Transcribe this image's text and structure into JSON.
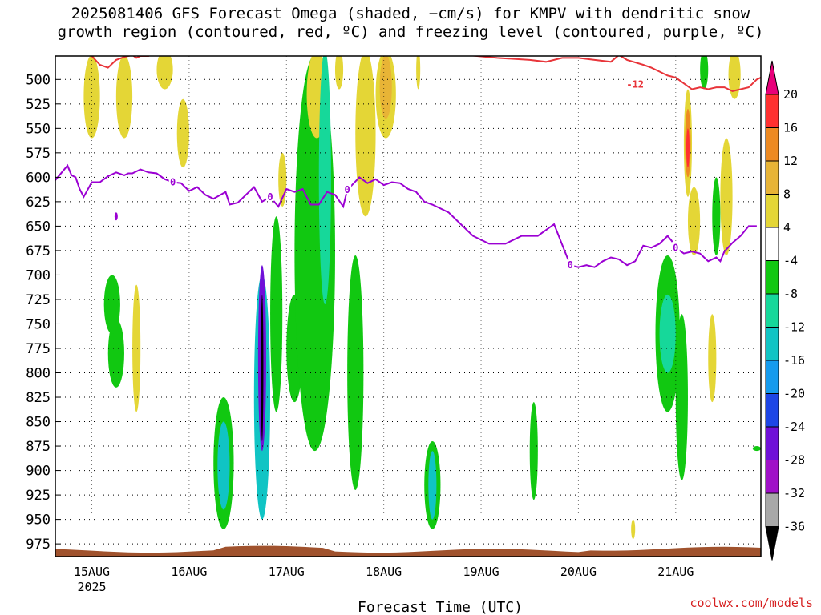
{
  "title": "2025081406 GFS Forecast Omega (shaded, −cm/s) for KMPV with dendritic snow\ngrowth region (contoured, red, ºC) and freezing level (contoured, purple, ºC)",
  "credit": "coolwx.com/models",
  "colors": {
    "frame": "#000000",
    "grid": "#000000",
    "ground": "#a0522d",
    "dgz": "#e8353a",
    "freezing": "#9b00d3",
    "white_band": "#ffffff"
  },
  "chart_data": {
    "type": "heatmap",
    "title": "2025081406 GFS Forecast Omega (shaded, −cm/s) for KMPV with dendritic snow growth region (contoured, red, ºC) and freezing level (contoured, purple, ºC)",
    "xlabel": "Forecast Time (UTC)",
    "ylabel": "",
    "x_tick_labels": [
      "15AUG",
      "16AUG",
      "17AUG",
      "18AUG",
      "19AUG",
      "20AUG",
      "21AUG"
    ],
    "x_year_label": "2025",
    "x_range_hours": [
      -9,
      165
    ],
    "y_tick_labels": [
      "500",
      "525",
      "550",
      "575",
      "600",
      "625",
      "650",
      "675",
      "700",
      "725",
      "750",
      "775",
      "800",
      "825",
      "850",
      "875",
      "900",
      "925",
      "950",
      "975"
    ],
    "y_range_hpa": [
      476,
      988
    ],
    "grid": true,
    "colorbar_labels": [
      "20",
      "16",
      "12",
      "8",
      "4",
      "-4",
      "-8",
      "-12",
      "-16",
      "-20",
      "-24",
      "-28",
      "-32",
      "-36"
    ],
    "colorbar_colors": [
      "#e8007a",
      "#ff3030",
      "#ee8a22",
      "#e8b436",
      "#e4d636",
      "#ffffff",
      "#11c811",
      "#16d89a",
      "#10c4c4",
      "#159bee",
      "#1e46e6",
      "#7010d8",
      "#a010c8",
      "#a8a8a8",
      "#000000"
    ],
    "colorbar_placement": "right",
    "contour_labels": {
      "dgz": "-12",
      "freezing": "0"
    },
    "freezing_level": {
      "hours": [
        -9,
        -6,
        -5,
        -4,
        -3,
        -2,
        0,
        2,
        4,
        6,
        8,
        9,
        10,
        12,
        14,
        16,
        18,
        20,
        22,
        24,
        26,
        28,
        30,
        33,
        34,
        36,
        38,
        40,
        42,
        44,
        46,
        48,
        50,
        52,
        54,
        56,
        58,
        60,
        62,
        63,
        66,
        68,
        70,
        72,
        74,
        76,
        78,
        80,
        82,
        84,
        86,
        88,
        90,
        94,
        98,
        102,
        106,
        110,
        114,
        118,
        120,
        122,
        124,
        126,
        128,
        130,
        132,
        134,
        136,
        138,
        140,
        142,
        143,
        144,
        146,
        148,
        150,
        152,
        154,
        155,
        156,
        158,
        160,
        162,
        164
      ],
      "hpa": [
        603,
        588,
        598,
        600,
        612,
        620,
        605,
        605,
        599,
        595,
        598,
        596,
        596,
        592,
        595,
        596,
        602,
        605,
        606,
        614,
        610,
        618,
        622,
        615,
        628,
        626,
        618,
        610,
        625,
        620,
        630,
        612,
        615,
        612,
        628,
        628,
        615,
        618,
        630,
        613,
        600,
        606,
        602,
        608,
        605,
        606,
        612,
        615,
        625,
        628,
        632,
        636,
        644,
        660,
        668,
        668,
        660,
        660,
        648,
        690,
        692,
        690,
        692,
        686,
        682,
        684,
        690,
        686,
        670,
        672,
        668,
        660,
        665,
        672,
        678,
        676,
        678,
        686,
        682,
        686,
        676,
        667,
        660,
        650,
        650
      ],
      "isolated_point": {
        "hours": 6,
        "hpa": 640
      }
    },
    "dgz_contour": {
      "hours": [
        -1,
        0,
        2,
        4,
        6,
        8,
        10,
        11,
        12,
        14,
        15,
        16,
        17,
        18,
        20,
        24,
        28,
        32,
        36,
        40,
        44,
        48,
        52,
        56,
        60,
        70,
        80,
        90,
        100,
        108,
        112,
        116,
        120,
        124,
        128,
        130,
        132,
        136,
        138,
        140,
        142,
        144,
        146,
        148,
        150,
        152,
        154,
        156,
        158,
        160,
        162,
        164,
        165
      ],
      "hpa": [
        465,
        476,
        485,
        488,
        480,
        477,
        475,
        478,
        476,
        476,
        474,
        470,
        468,
        470,
        472,
        473,
        472,
        470,
        468,
        470,
        471,
        472,
        474,
        470,
        468,
        470,
        470,
        474,
        478,
        480,
        482,
        478,
        478,
        480,
        482,
        475,
        480,
        485,
        488,
        492,
        496,
        498,
        504,
        510,
        508,
        510,
        508,
        508,
        512,
        510,
        508,
        500,
        498
      ]
    },
    "omega_cells": [
      {
        "x": [
          4,
          8
        ],
        "y": [
          745,
          815
        ],
        "color": "#11c811"
      },
      {
        "x": [
          3,
          7
        ],
        "y": [
          700,
          760
        ],
        "color": "#11c811"
      },
      {
        "x": [
          10,
          12
        ],
        "y": [
          710,
          840
        ],
        "color": "#e4d636"
      },
      {
        "x": [
          -2,
          2
        ],
        "y": [
          475,
          560
        ],
        "color": "#e4d636"
      },
      {
        "x": [
          6,
          10
        ],
        "y": [
          475,
          560
        ],
        "color": "#e4d636"
      },
      {
        "x": [
          16,
          20
        ],
        "y": [
          470,
          510
        ],
        "color": "#e4d636"
      },
      {
        "x": [
          21,
          24
        ],
        "y": [
          520,
          590
        ],
        "color": "#e4d636"
      },
      {
        "x": [
          30,
          35
        ],
        "y": [
          825,
          960
        ],
        "color": "#11c811"
      },
      {
        "x": [
          31,
          34
        ],
        "y": [
          850,
          940
        ],
        "color": "#10c4c4"
      },
      {
        "x": [
          40,
          44
        ],
        "y": [
          700,
          950
        ],
        "color": "#10c4c4"
      },
      {
        "x": [
          41,
          43
        ],
        "y": [
          690,
          880
        ],
        "color": "#7010d8"
      },
      {
        "x": [
          41.7,
          42.3
        ],
        "y": [
          720,
          870
        ],
        "color": "#000000"
      },
      {
        "x": [
          44,
          47
        ],
        "y": [
          640,
          840
        ],
        "color": "#11c811"
      },
      {
        "x": [
          46,
          48
        ],
        "y": [
          575,
          630
        ],
        "color": "#e4d636"
      },
      {
        "x": [
          48,
          52
        ],
        "y": [
          720,
          830
        ],
        "color": "#11c811"
      },
      {
        "x": [
          50,
          60
        ],
        "y": [
          475,
          880
        ],
        "color": "#11c811"
      },
      {
        "x": [
          53,
          58
        ],
        "y": [
          470,
          560
        ],
        "color": "#e4d636"
      },
      {
        "x": [
          56,
          59
        ],
        "y": [
          470,
          730
        ],
        "color": "#16d89a"
      },
      {
        "x": [
          60,
          62
        ],
        "y": [
          470,
          510
        ],
        "color": "#e4d636"
      },
      {
        "x": [
          63,
          67
        ],
        "y": [
          680,
          920
        ],
        "color": "#11c811"
      },
      {
        "x": [
          65,
          70
        ],
        "y": [
          470,
          640
        ],
        "color": "#e4d636"
      },
      {
        "x": [
          70,
          75
        ],
        "y": [
          470,
          560
        ],
        "color": "#e4d636"
      },
      {
        "x": [
          71,
          74
        ],
        "y": [
          475,
          540
        ],
        "color": "#e8b436"
      },
      {
        "x": [
          80,
          81
        ],
        "y": [
          470,
          510
        ],
        "color": "#e4d636"
      },
      {
        "x": [
          82,
          86
        ],
        "y": [
          870,
          960
        ],
        "color": "#11c811"
      },
      {
        "x": [
          83,
          85
        ],
        "y": [
          880,
          950
        ],
        "color": "#10c4c4"
      },
      {
        "x": [
          108,
          110
        ],
        "y": [
          830,
          930
        ],
        "color": "#11c811"
      },
      {
        "x": [
          139,
          145
        ],
        "y": [
          680,
          840
        ],
        "color": "#11c811"
      },
      {
        "x": [
          140,
          144
        ],
        "y": [
          720,
          800
        ],
        "color": "#16d89a"
      },
      {
        "x": [
          144,
          147
        ],
        "y": [
          740,
          910
        ],
        "color": "#11c811"
      },
      {
        "x": [
          146,
          148
        ],
        "y": [
          510,
          620
        ],
        "color": "#e4d636"
      },
      {
        "x": [
          146.3,
          147.7
        ],
        "y": [
          530,
          600
        ],
        "color": "#ee8a22"
      },
      {
        "x": [
          146.6,
          147.4
        ],
        "y": [
          550,
          590
        ],
        "color": "#ff3030"
      },
      {
        "x": [
          147,
          150
        ],
        "y": [
          610,
          680
        ],
        "color": "#e4d636"
      },
      {
        "x": [
          150,
          152
        ],
        "y": [
          470,
          510
        ],
        "color": "#11c811"
      },
      {
        "x": [
          152,
          154
        ],
        "y": [
          740,
          830
        ],
        "color": "#e4d636"
      },
      {
        "x": [
          153,
          155
        ],
        "y": [
          600,
          680
        ],
        "color": "#11c811"
      },
      {
        "x": [
          155,
          158
        ],
        "y": [
          560,
          680
        ],
        "color": "#e4d636"
      },
      {
        "x": [
          157,
          160
        ],
        "y": [
          470,
          520
        ],
        "color": "#e4d636"
      },
      {
        "x": [
          133,
          134
        ],
        "y": [
          950,
          970
        ],
        "color": "#e4d636"
      },
      {
        "x": [
          163,
          165
        ],
        "y": [
          875,
          880
        ],
        "color": "#11c811"
      }
    ]
  }
}
